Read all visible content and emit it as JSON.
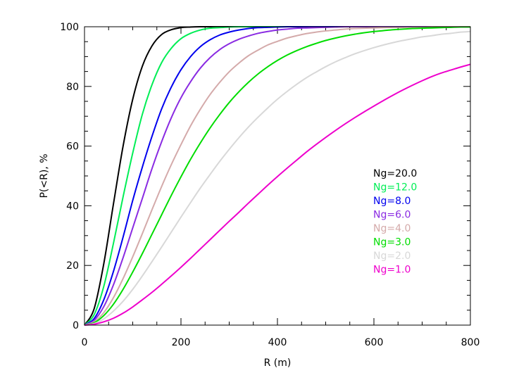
{
  "chart_data": {
    "type": "line",
    "xlabel": "R (m)",
    "ylabel": "P(<R), %",
    "xlim": [
      0,
      800
    ],
    "ylim": [
      0,
      100
    ],
    "xticks": [
      0,
      200,
      400,
      600,
      800
    ],
    "yticks": [
      0,
      20,
      40,
      60,
      80,
      100
    ],
    "x_minor_step": 50,
    "y_minor_step": 5,
    "grid": false,
    "legend_position": "center-right",
    "x": [
      0,
      20,
      40,
      60,
      80,
      100,
      120,
      140,
      160,
      180,
      200,
      220,
      240,
      260,
      280,
      300,
      320,
      340,
      360,
      380,
      400,
      420,
      440,
      460,
      480,
      500,
      520,
      540,
      560,
      580,
      600,
      620,
      640,
      660,
      680,
      700,
      720,
      740,
      760,
      780,
      800
    ],
    "series": [
      {
        "name": "Ng=20.0",
        "color": "#000000",
        "values": [
          0,
          5.5,
          20.6,
          40.6,
          60.0,
          75.7,
          86.8,
          93.6,
          97.4,
          99.0,
          99.7,
          99.9,
          100,
          100,
          100,
          100,
          100,
          100,
          100,
          100,
          100,
          100,
          100,
          100,
          100,
          100,
          100,
          100,
          100,
          100,
          100,
          100,
          100,
          100,
          100,
          100,
          100,
          100,
          100,
          100,
          100
        ]
      },
      {
        "name": "Ng=12.0",
        "color": "#00ee55",
        "values": [
          0,
          3.5,
          13.0,
          27.4,
          43.0,
          57.7,
          70.7,
          80.6,
          88.0,
          92.8,
          96.0,
          97.8,
          98.9,
          99.5,
          99.7,
          99.9,
          100,
          100,
          100,
          100,
          100,
          100,
          100,
          100,
          100,
          100,
          100,
          100,
          100,
          100,
          100,
          100,
          100,
          100,
          100,
          100,
          100,
          100,
          100,
          100,
          100
        ]
      },
      {
        "name": "Ng=8.0",
        "color": "#0000ee",
        "values": [
          0,
          2.2,
          8.5,
          18.0,
          29.5,
          41.8,
          53.0,
          63.3,
          72.5,
          79.8,
          85.6,
          90.0,
          93.3,
          95.6,
          97.2,
          98.2,
          98.9,
          99.4,
          99.7,
          99.8,
          99.9,
          100,
          100,
          100,
          100,
          100,
          100,
          100,
          100,
          100,
          100,
          100,
          100,
          100,
          100,
          100,
          100,
          100,
          100,
          100,
          100
        ]
      },
      {
        "name": "Ng=6.0",
        "color": "#8a2be2",
        "values": [
          0,
          1.6,
          6.2,
          13.5,
          22.6,
          32.6,
          42.5,
          52.5,
          61.5,
          69.5,
          76.2,
          81.6,
          86.1,
          89.6,
          92.3,
          94.3,
          95.8,
          96.9,
          97.8,
          98.4,
          98.9,
          99.2,
          99.5,
          99.6,
          99.7,
          99.8,
          99.9,
          100,
          100,
          100,
          100,
          100,
          100,
          100,
          100,
          100,
          100,
          100,
          100,
          100,
          100
        ]
      },
      {
        "name": "Ng=4.0",
        "color": "#d4aaaa",
        "values": [
          0,
          1.1,
          4.2,
          9.2,
          15.6,
          22.9,
          30.7,
          38.7,
          46.5,
          53.8,
          60.5,
          66.8,
          72.3,
          77.2,
          81.3,
          84.9,
          87.8,
          90.3,
          92.2,
          93.9,
          95.1,
          96.2,
          97.0,
          97.7,
          98.2,
          98.6,
          98.9,
          99.2,
          99.4,
          99.5,
          99.6,
          99.7,
          99.8,
          99.8,
          99.9,
          99.9,
          100,
          100,
          100,
          100,
          100
        ]
      },
      {
        "name": "Ng=3.0",
        "color": "#00dd00",
        "values": [
          0,
          0.8,
          3.2,
          7.0,
          12.0,
          17.8,
          24.0,
          30.5,
          37.0,
          43.5,
          49.7,
          55.6,
          61.0,
          66.0,
          70.5,
          74.6,
          78.2,
          81.4,
          84.2,
          86.6,
          88.7,
          90.5,
          92.0,
          93.3,
          94.4,
          95.4,
          96.2,
          96.9,
          97.5,
          98.0,
          98.4,
          98.7,
          99.0,
          99.2,
          99.4,
          99.5,
          99.6,
          99.7,
          99.8,
          99.9,
          99.9
        ]
      },
      {
        "name": "Ng=2.0",
        "color": "#d8d8d8",
        "values": [
          0,
          0.5,
          2.1,
          4.7,
          8.0,
          12.0,
          16.5,
          21.3,
          26.2,
          31.2,
          36.2,
          41.1,
          45.9,
          50.4,
          54.8,
          58.9,
          62.8,
          66.4,
          69.7,
          72.8,
          75.7,
          78.3,
          80.7,
          82.9,
          84.8,
          86.6,
          88.2,
          89.6,
          90.9,
          92.0,
          93.0,
          93.9,
          94.7,
          95.4,
          96.0,
          96.6,
          97.0,
          97.5,
          97.8,
          98.2,
          98.4
        ]
      },
      {
        "name": "Ng=1.0",
        "color": "#ee00cc",
        "values": [
          0,
          0.3,
          1.1,
          2.3,
          4.0,
          6.1,
          8.5,
          11.0,
          13.7,
          16.5,
          19.4,
          22.4,
          25.5,
          28.6,
          31.7,
          34.8,
          37.8,
          40.9,
          43.9,
          46.9,
          49.8,
          52.6,
          55.3,
          58.0,
          60.5,
          62.9,
          65.2,
          67.4,
          69.5,
          71.5,
          73.4,
          75.3,
          77.1,
          78.8,
          80.4,
          81.9,
          83.3,
          84.5,
          85.5,
          86.5,
          87.4
        ]
      }
    ]
  }
}
